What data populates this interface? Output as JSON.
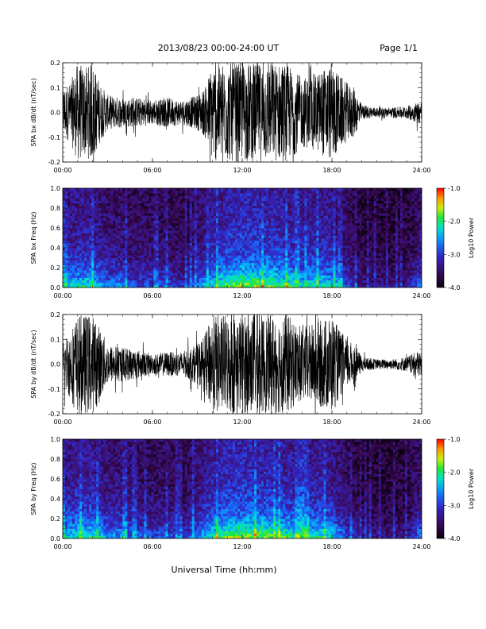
{
  "header": {
    "title": "2013/08/23  00:00-24:00 UT",
    "page": "Page 1/1"
  },
  "footer": {
    "xlabel": "Universal Time (hh:mm)"
  },
  "colors": {
    "trace": "#000000",
    "spectrogram_background": "#1a0426"
  },
  "colorbar": {
    "label": "Log10 Power",
    "ticks": [
      "-1.0",
      "-2.0",
      "-3.0",
      "-4.0"
    ],
    "range": [
      -4.0,
      -1.0
    ],
    "colormap": "rainbow (black-purple-blue-cyan-green-yellow-red)"
  },
  "chart_data": [
    {
      "type": "line",
      "ylabel": "SPA bx dB/dt (nT/sec)",
      "x_ticks": [
        "00:00",
        "06:00",
        "12:00",
        "18:00",
        "24:00"
      ],
      "y_ticks": [
        "0.2",
        "0.1",
        "0.0",
        "-0.1",
        "-0.2"
      ],
      "xlim": [
        0,
        24
      ],
      "ylim": [
        -0.2,
        0.2
      ],
      "envelope": {
        "x": [
          0,
          0.5,
          1.0,
          1.5,
          2.0,
          2.5,
          3,
          4,
          5,
          6,
          7,
          8,
          9,
          9.5,
          10,
          11,
          12,
          13,
          14,
          15,
          16,
          17,
          18,
          18.5,
          19,
          19.5,
          20,
          21,
          22,
          23,
          24
        ],
        "amplitude": [
          0.1,
          0.12,
          0.2,
          0.18,
          0.2,
          0.12,
          0.07,
          0.06,
          0.06,
          0.05,
          0.06,
          0.05,
          0.07,
          0.1,
          0.2,
          0.2,
          0.2,
          0.2,
          0.2,
          0.2,
          0.14,
          0.16,
          0.2,
          0.15,
          0.12,
          0.1,
          0.03,
          0.02,
          0.02,
          0.025,
          0.05
        ]
      }
    },
    {
      "type": "heatmap",
      "ylabel": "SPA bx Freq (Hz)",
      "x_ticks": [
        "00:00",
        "06:00",
        "12:00",
        "18:00",
        "24:00"
      ],
      "y_ticks": [
        "1.0",
        "0.8",
        "0.6",
        "0.4",
        "0.2",
        "0.0"
      ],
      "xlim": [
        0,
        24
      ],
      "ylim": [
        0.0,
        1.0
      ],
      "colorbar_label": "Log10 Power",
      "activity": {
        "x": [
          0,
          1,
          2,
          3,
          4,
          5,
          6,
          7,
          8,
          9,
          10,
          11,
          12,
          13,
          14,
          15,
          16,
          17,
          18,
          19,
          20,
          21,
          22,
          23,
          24
        ],
        "level": [
          0.7,
          0.8,
          0.8,
          0.6,
          0.6,
          0.5,
          0.5,
          0.5,
          0.4,
          0.6,
          0.8,
          0.95,
          1.0,
          1.0,
          0.95,
          0.9,
          0.8,
          0.85,
          0.8,
          0.5,
          0.3,
          0.3,
          0.3,
          0.3,
          0.6
        ]
      }
    },
    {
      "type": "line",
      "ylabel": "SPA by dB/dt (nT/sec)",
      "x_ticks": [
        "00:00",
        "06:00",
        "12:00",
        "18:00",
        "24:00"
      ],
      "y_ticks": [
        "0.2",
        "0.1",
        "0.0",
        "-0.1",
        "-0.2"
      ],
      "xlim": [
        0,
        24
      ],
      "ylim": [
        -0.2,
        0.2
      ],
      "envelope": {
        "x": [
          0,
          0.5,
          1.0,
          1.5,
          2.0,
          2.5,
          3,
          4,
          5,
          6,
          7,
          8,
          9,
          9.5,
          10,
          11,
          12,
          13,
          14,
          15,
          16,
          17,
          18,
          18.5,
          19,
          19.5,
          20,
          21,
          22,
          23,
          24
        ],
        "amplitude": [
          0.1,
          0.14,
          0.2,
          0.2,
          0.2,
          0.15,
          0.08,
          0.07,
          0.06,
          0.04,
          0.05,
          0.05,
          0.08,
          0.12,
          0.2,
          0.2,
          0.2,
          0.2,
          0.2,
          0.2,
          0.15,
          0.17,
          0.2,
          0.14,
          0.1,
          0.08,
          0.03,
          0.02,
          0.02,
          0.03,
          0.06
        ]
      }
    },
    {
      "type": "heatmap",
      "ylabel": "SPA by Freq (Hz)",
      "x_ticks": [
        "00:00",
        "06:00",
        "12:00",
        "18:00",
        "24:00"
      ],
      "y_ticks": [
        "1.0",
        "0.8",
        "0.6",
        "0.4",
        "0.2",
        "0.0"
      ],
      "xlim": [
        0,
        24
      ],
      "ylim": [
        0.0,
        1.0
      ],
      "colorbar_label": "Log10 Power",
      "activity": {
        "x": [
          0,
          1,
          2,
          3,
          4,
          5,
          6,
          7,
          8,
          9,
          10,
          11,
          12,
          13,
          14,
          15,
          16,
          17,
          18,
          19,
          20,
          21,
          22,
          23,
          24
        ],
        "level": [
          0.75,
          0.85,
          0.85,
          0.65,
          0.65,
          0.55,
          0.5,
          0.5,
          0.45,
          0.65,
          0.85,
          1.0,
          1.0,
          1.0,
          0.95,
          0.9,
          0.8,
          0.85,
          0.8,
          0.5,
          0.3,
          0.3,
          0.3,
          0.3,
          0.65
        ]
      }
    }
  ]
}
